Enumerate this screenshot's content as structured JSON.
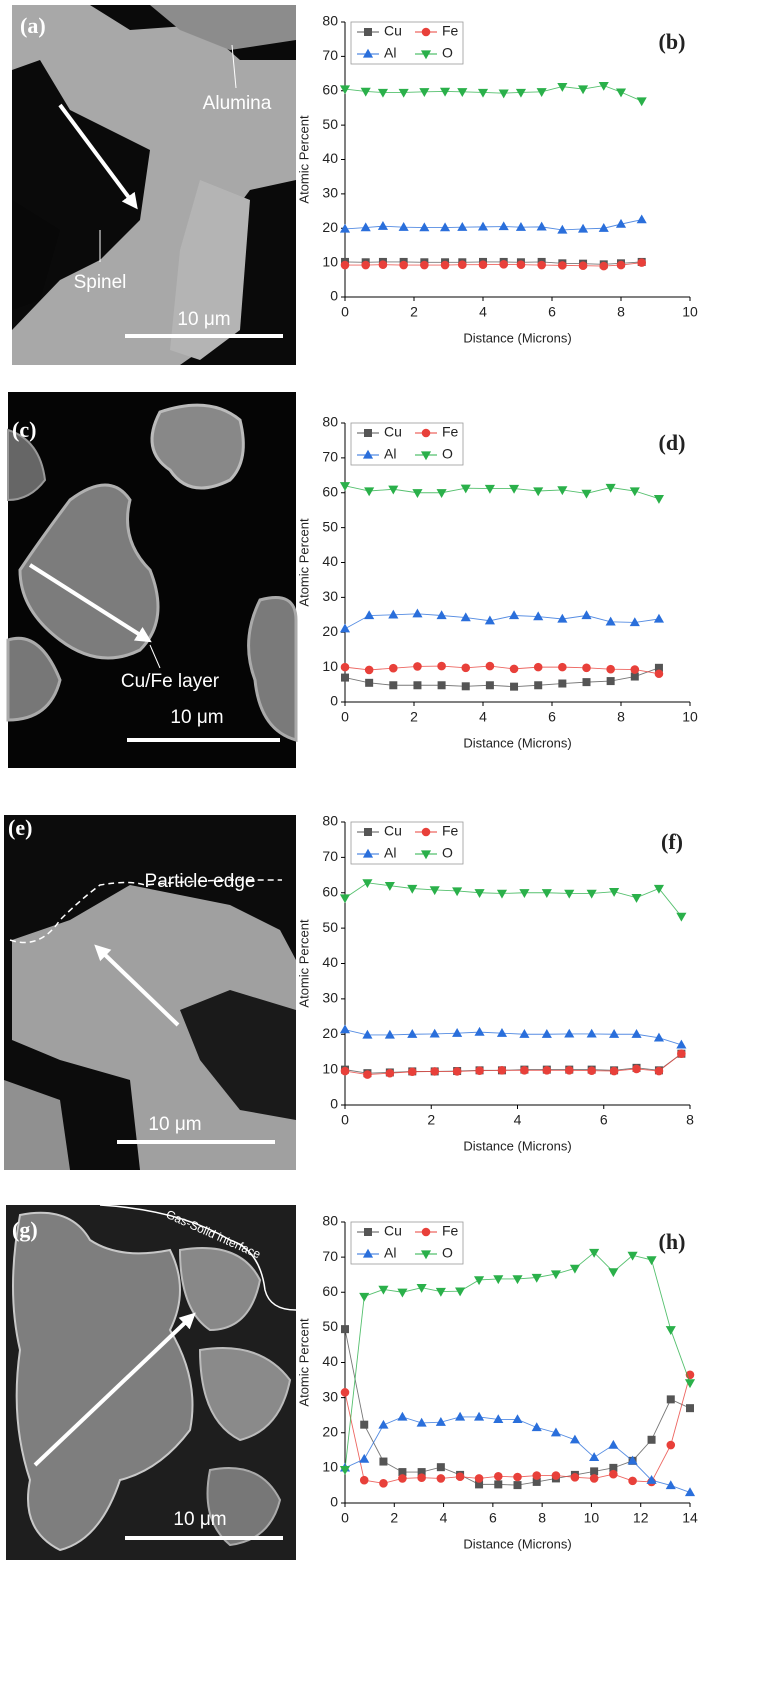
{
  "images": [
    {
      "label": "(a)",
      "annotations": [
        "Alumina",
        "Spinel"
      ],
      "scale_bar": "10 μm"
    },
    {
      "label": "(c)",
      "annotations": [
        "Cu/Fe layer"
      ],
      "scale_bar": "10 μm"
    },
    {
      "label": "(e)",
      "annotations": [
        "Particle edge"
      ],
      "scale_bar": "10 μm"
    },
    {
      "label": "(g)",
      "annotations": [
        "Gas-Solid interface"
      ],
      "scale_bar": "10 μm"
    }
  ],
  "chart_data": [
    {
      "type": "line",
      "panel_label": "(b)",
      "xlabel": "Distance (Microns)",
      "ylabel": "Atomic Percent",
      "x": [
        0,
        0.6,
        1.1,
        1.7,
        2.3,
        2.9,
        3.4,
        4.0,
        4.6,
        5.1,
        5.7,
        6.3,
        6.9,
        7.5,
        8.0,
        8.6
      ],
      "series": [
        {
          "name": "Cu",
          "color": "#555555",
          "marker": "square",
          "values": [
            10.2,
            10.1,
            10.2,
            10.2,
            10.1,
            10.1,
            10.1,
            10.2,
            10.2,
            10.1,
            10.2,
            9.8,
            9.7,
            9.5,
            9.8,
            10.2
          ]
        },
        {
          "name": "Fe",
          "color": "#e8403a",
          "marker": "circle",
          "values": [
            9.3,
            9.3,
            9.4,
            9.3,
            9.3,
            9.3,
            9.4,
            9.4,
            9.5,
            9.4,
            9.3,
            9.2,
            9.1,
            9.0,
            9.3,
            10.0
          ]
        },
        {
          "name": "Al",
          "color": "#2a6fdb",
          "marker": "triangle-up",
          "values": [
            19.8,
            20.2,
            20.6,
            20.3,
            20.2,
            20.2,
            20.3,
            20.4,
            20.5,
            20.3,
            20.4,
            19.5,
            19.8,
            20.0,
            21.2,
            22.5
          ]
        },
        {
          "name": "O",
          "color": "#2ab04a",
          "marker": "triangle-down",
          "values": [
            60.5,
            59.8,
            59.5,
            59.5,
            59.7,
            59.8,
            59.7,
            59.5,
            59.3,
            59.5,
            59.7,
            61.2,
            60.5,
            61.5,
            59.6,
            57.0
          ]
        }
      ],
      "xlim": [
        0,
        10
      ],
      "xticks": [
        0,
        2,
        4,
        6,
        8,
        10
      ],
      "ylim": [
        0,
        80
      ],
      "yticks": [
        0,
        10,
        20,
        30,
        40,
        50,
        60,
        70,
        80
      ]
    },
    {
      "type": "line",
      "panel_label": "(d)",
      "xlabel": "Distance (Microns)",
      "ylabel": "Atomic Percent",
      "x": [
        0,
        0.7,
        1.4,
        2.1,
        2.8,
        3.5,
        4.2,
        4.9,
        5.6,
        6.3,
        7.0,
        7.7,
        8.4,
        9.1
      ],
      "series": [
        {
          "name": "Cu",
          "color": "#555555",
          "marker": "square",
          "values": [
            7.0,
            5.5,
            4.8,
            4.8,
            4.8,
            4.5,
            4.8,
            4.4,
            4.8,
            5.3,
            5.7,
            6.0,
            7.3,
            9.8
          ]
        },
        {
          "name": "Fe",
          "color": "#e8403a",
          "marker": "circle",
          "values": [
            10.0,
            9.2,
            9.7,
            10.2,
            10.3,
            9.8,
            10.3,
            9.5,
            10.0,
            10.0,
            9.8,
            9.4,
            9.3,
            8.1
          ]
        },
        {
          "name": "Al",
          "color": "#2a6fdb",
          "marker": "triangle-up",
          "values": [
            21.0,
            24.8,
            25.0,
            25.3,
            24.8,
            24.2,
            23.3,
            24.8,
            24.5,
            23.8,
            24.8,
            23.0,
            22.8,
            23.8
          ]
        },
        {
          "name": "O",
          "color": "#2ab04a",
          "marker": "triangle-down",
          "values": [
            62.0,
            60.5,
            61.0,
            60.0,
            60.0,
            61.3,
            61.2,
            61.2,
            60.5,
            60.8,
            59.8,
            61.5,
            60.5,
            58.3
          ]
        }
      ],
      "xlim": [
        0,
        10
      ],
      "xticks": [
        0,
        2,
        4,
        6,
        8,
        10
      ],
      "ylim": [
        0,
        80
      ],
      "yticks": [
        0,
        10,
        20,
        30,
        40,
        50,
        60,
        70,
        80
      ]
    },
    {
      "type": "line",
      "panel_label": "(f)",
      "xlabel": "Distance (Microns)",
      "ylabel": "Atomic Percent",
      "x": [
        0,
        0.52,
        1.04,
        1.56,
        2.08,
        2.6,
        3.12,
        3.64,
        4.16,
        4.68,
        5.2,
        5.72,
        6.24,
        6.76,
        7.28,
        7.8
      ],
      "series": [
        {
          "name": "Cu",
          "color": "#555555",
          "marker": "square",
          "values": [
            10.0,
            9.0,
            9.2,
            9.5,
            9.5,
            9.6,
            9.8,
            9.8,
            10.0,
            10.0,
            10.0,
            10.0,
            9.8,
            10.5,
            9.8,
            14.5
          ]
        },
        {
          "name": "Fe",
          "color": "#e8403a",
          "marker": "circle",
          "values": [
            9.6,
            8.6,
            9.0,
            9.4,
            9.5,
            9.5,
            9.7,
            9.8,
            9.8,
            9.8,
            9.8,
            9.7,
            9.6,
            10.2,
            9.6,
            14.5
          ]
        },
        {
          "name": "Al",
          "color": "#2a6fdb",
          "marker": "triangle-up",
          "values": [
            21.3,
            19.8,
            19.8,
            20.0,
            20.1,
            20.3,
            20.6,
            20.3,
            20.0,
            20.0,
            20.1,
            20.1,
            20.0,
            20.0,
            19.0,
            17.0
          ]
        },
        {
          "name": "O",
          "color": "#2ab04a",
          "marker": "triangle-down",
          "values": [
            58.5,
            62.8,
            62.0,
            61.2,
            60.8,
            60.5,
            60.0,
            59.8,
            60.0,
            60.0,
            59.8,
            59.8,
            60.3,
            58.6,
            61.2,
            53.3
          ]
        }
      ],
      "xlim": [
        0,
        8
      ],
      "xticks": [
        0,
        2,
        4,
        6,
        8
      ],
      "ylim": [
        0,
        80
      ],
      "yticks": [
        0,
        10,
        20,
        30,
        40,
        50,
        60,
        70,
        80
      ]
    },
    {
      "type": "line",
      "panel_label": "(h)",
      "xlabel": "Distance (Microns)",
      "ylabel": "Atomic Percent",
      "x": [
        0,
        0.78,
        1.56,
        2.33,
        3.11,
        3.89,
        4.67,
        5.44,
        6.22,
        7.0,
        7.78,
        8.56,
        9.33,
        10.11,
        10.89,
        11.67,
        12.44,
        13.22,
        14.0
      ],
      "series": [
        {
          "name": "Cu",
          "color": "#555555",
          "marker": "square",
          "values": [
            49.5,
            22.3,
            11.8,
            8.8,
            8.8,
            10.2,
            8.0,
            5.3,
            5.3,
            5.1,
            6.0,
            7.0,
            8.0,
            9.0,
            10.0,
            12.0,
            18.0,
            29.5,
            27.0
          ]
        },
        {
          "name": "Fe",
          "color": "#e8403a",
          "marker": "circle",
          "values": [
            31.5,
            6.5,
            5.6,
            7.0,
            7.2,
            7.0,
            7.5,
            7.0,
            7.6,
            7.4,
            7.8,
            7.8,
            7.3,
            7.0,
            8.2,
            6.3,
            6.0,
            16.5,
            36.5
          ]
        },
        {
          "name": "Al",
          "color": "#2a6fdb",
          "marker": "triangle-up",
          "values": [
            10.0,
            12.5,
            22.2,
            24.5,
            22.8,
            23.0,
            24.5,
            24.5,
            23.8,
            23.8,
            21.5,
            20.0,
            18.0,
            13.0,
            16.5,
            12.0,
            6.5,
            5.0,
            3.0
          ]
        },
        {
          "name": "O",
          "color": "#2ab04a",
          "marker": "triangle-down",
          "values": [
            9.5,
            58.8,
            60.8,
            60.0,
            61.3,
            60.2,
            60.3,
            63.5,
            63.8,
            63.8,
            64.2,
            65.2,
            66.8,
            71.3,
            65.8,
            70.5,
            69.2,
            49.3,
            34.2
          ]
        }
      ],
      "xlim": [
        0,
        14
      ],
      "xticks": [
        0,
        2,
        4,
        6,
        8,
        10,
        12,
        14
      ],
      "ylim": [
        0,
        80
      ],
      "yticks": [
        0,
        10,
        20,
        30,
        40,
        50,
        60,
        70,
        80
      ]
    }
  ]
}
